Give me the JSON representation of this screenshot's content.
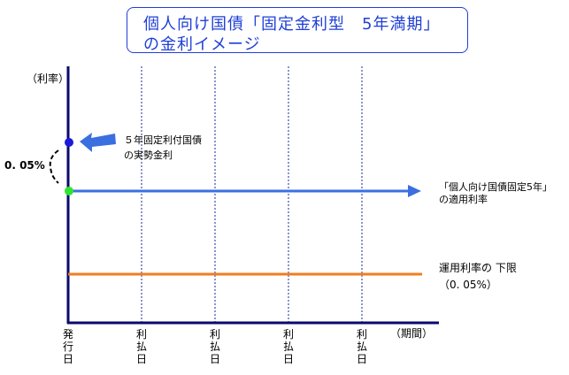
{
  "title": {
    "line1": "個人向け国債「固定金利型　5年満期」",
    "line2": "の金利イメージ"
  },
  "axis": {
    "y_label": "（利率）",
    "x_label": "（期間）",
    "origin_label": "発\n行\n日",
    "tick_label": "利\n払\n日"
  },
  "annotations": {
    "market_rate": "５年固定利付国債\nの実勢金利",
    "applied_rate": "「個人向け国債固定5年」\nの適用利率",
    "floor": "運用利率の 下限\n（0. 05%）",
    "spread": "0. 05%"
  },
  "colors": {
    "title_blue": "#1f3fd6",
    "applied_line": "#3b6fe0",
    "floor_line": "#f07d1e",
    "market_dot": "#1a1ad8",
    "applied_dot": "#2ee62e"
  }
}
